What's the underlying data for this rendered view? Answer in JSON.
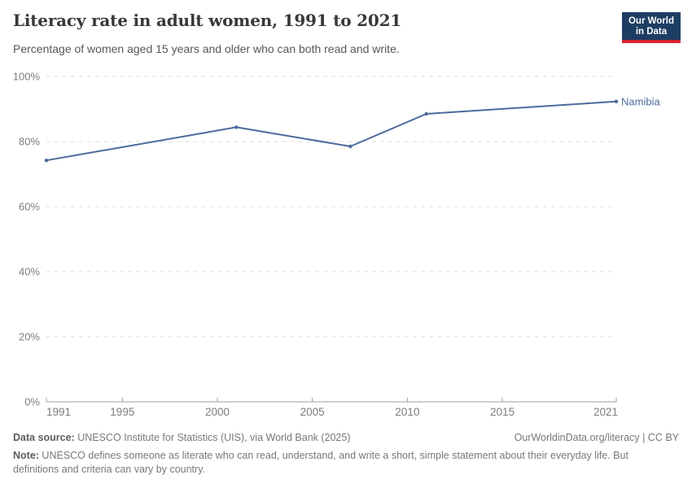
{
  "header": {
    "title": "Literacy rate in adult women, 1991 to 2021",
    "subtitle": "Percentage of women aged 15 years and older who can both read and write.",
    "logo": {
      "line1": "Our World",
      "line2": "in Data",
      "bg_color": "#1d3d63",
      "accent_color": "#d8252e"
    }
  },
  "chart_data": {
    "type": "line",
    "title": "Literacy rate in adult women, 1991 to 2021",
    "series": [
      {
        "name": "Namibia",
        "color": "#4c6a9c",
        "points": [
          {
            "year": 1991,
            "value": 74.2
          },
          {
            "year": 2001,
            "value": 84.4
          },
          {
            "year": 2007,
            "value": 78.5
          },
          {
            "year": 2011,
            "value": 88.5
          },
          {
            "year": 2021,
            "value": 92.3
          }
        ]
      }
    ],
    "end_label": "Namibia",
    "xlabel": "",
    "ylabel": "",
    "x_ticks": [
      1991,
      1995,
      2000,
      2005,
      2010,
      2015,
      2021
    ],
    "y_ticks": [
      0,
      20,
      40,
      60,
      80,
      100
    ],
    "y_tick_suffix": "%",
    "xlim": [
      1991,
      2021
    ],
    "ylim": [
      0,
      100
    ],
    "grid": "horizontal-dashed",
    "grid_color": "#dedede",
    "axis_color": "#9e9e9e",
    "tick_label_color": "#7d7d7d",
    "legend_position": "end-of-line"
  },
  "footer": {
    "datasource_label": "Data source:",
    "datasource_text": " UNESCO Institute for Statistics (UIS), via World Bank (2025)",
    "attribution": "OurWorldinData.org/literacy | CC BY",
    "note_label": "Note:",
    "note_text": " UNESCO defines someone as literate who can read, understand, and write a short, simple statement about their everyday life. But definitions and criteria can vary by country."
  }
}
